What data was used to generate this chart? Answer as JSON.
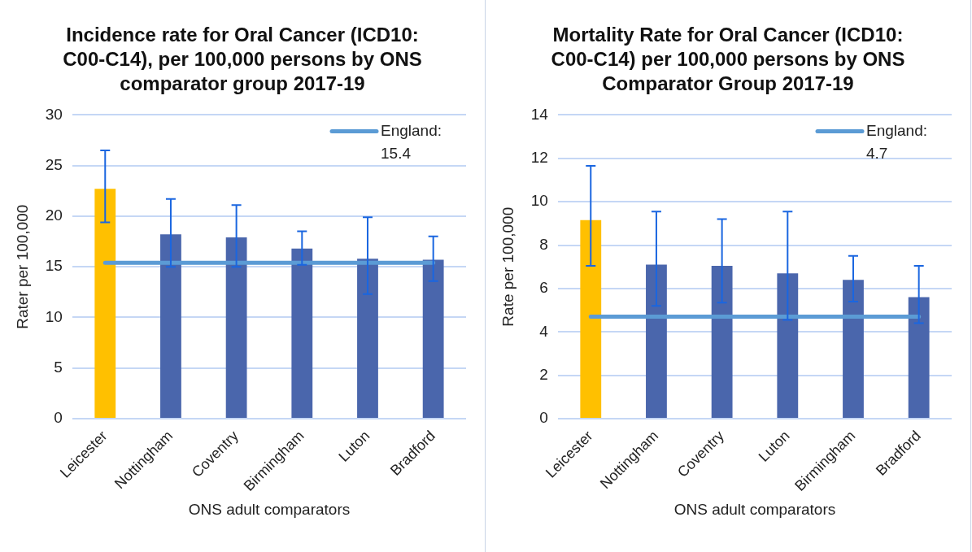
{
  "chart_data": [
    {
      "type": "bar",
      "title": "Incidence rate for Oral Cancer (ICD10: C00-C14), per 100,000 persons by ONS comparator group 2017-19",
      "xlabel": "ONS adult comparators",
      "ylabel": "Rater per 100,000",
      "categories": [
        "Leicester",
        "Nottingham",
        "Coventry",
        "Birmingham",
        "Luton",
        "Bradford"
      ],
      "series": [
        {
          "colors": [
            "#ffc000",
            "#4a66ac",
            "#4a66ac",
            "#4a66ac",
            "#4a66ac",
            "#4a66ac"
          ],
          "values": [
            22.7,
            18.2,
            17.9,
            16.8,
            15.8,
            15.7
          ],
          "errors": [
            [
              19.4,
              26.5
            ],
            [
              15.0,
              21.7
            ],
            [
              15.0,
              21.1
            ],
            [
              15.2,
              18.5
            ],
            [
              12.3,
              19.9
            ],
            [
              13.6,
              18.0
            ]
          ]
        },
        {
          "type": "line",
          "name": "England: 15.4",
          "color": "#5b9bd5",
          "values": [
            15.4,
            15.4,
            15.4,
            15.4,
            15.4,
            15.4
          ]
        }
      ],
      "ylim": [
        0,
        30
      ],
      "yticks": [
        0,
        5,
        10,
        15,
        20,
        25,
        30
      ],
      "grid": "y",
      "legend": "top right"
    },
    {
      "type": "bar",
      "title": "Mortality Rate for Oral Cancer (ICD10: C00-C14) per 100,000 persons by ONS Comparator Group 2017-19",
      "xlabel": "ONS adult comparators",
      "ylabel": "Rate per 100,000",
      "categories": [
        "Leicester",
        "Nottingham",
        "Coventry",
        "Luton",
        "Birmingham",
        "Bradford"
      ],
      "series": [
        {
          "colors": [
            "#ffc000",
            "#4a66ac",
            "#4a66ac",
            "#4a66ac",
            "#4a66ac",
            "#4a66ac"
          ],
          "values": [
            9.15,
            7.1,
            7.05,
            6.7,
            6.4,
            5.6
          ],
          "errors": [
            [
              7.05,
              11.65
            ],
            [
              5.2,
              9.55
            ],
            [
              5.35,
              9.2
            ],
            [
              4.55,
              9.55
            ],
            [
              5.4,
              7.5
            ],
            [
              4.4,
              7.05
            ]
          ]
        },
        {
          "type": "line",
          "name": "England: 4.7",
          "color": "#5b9bd5",
          "values": [
            4.7,
            4.7,
            4.7,
            4.7,
            4.7,
            4.7
          ]
        }
      ],
      "ylim": [
        0,
        14
      ],
      "yticks": [
        0,
        2,
        4,
        6,
        8,
        10,
        12,
        14
      ],
      "grid": "y",
      "legend": "top right"
    }
  ]
}
